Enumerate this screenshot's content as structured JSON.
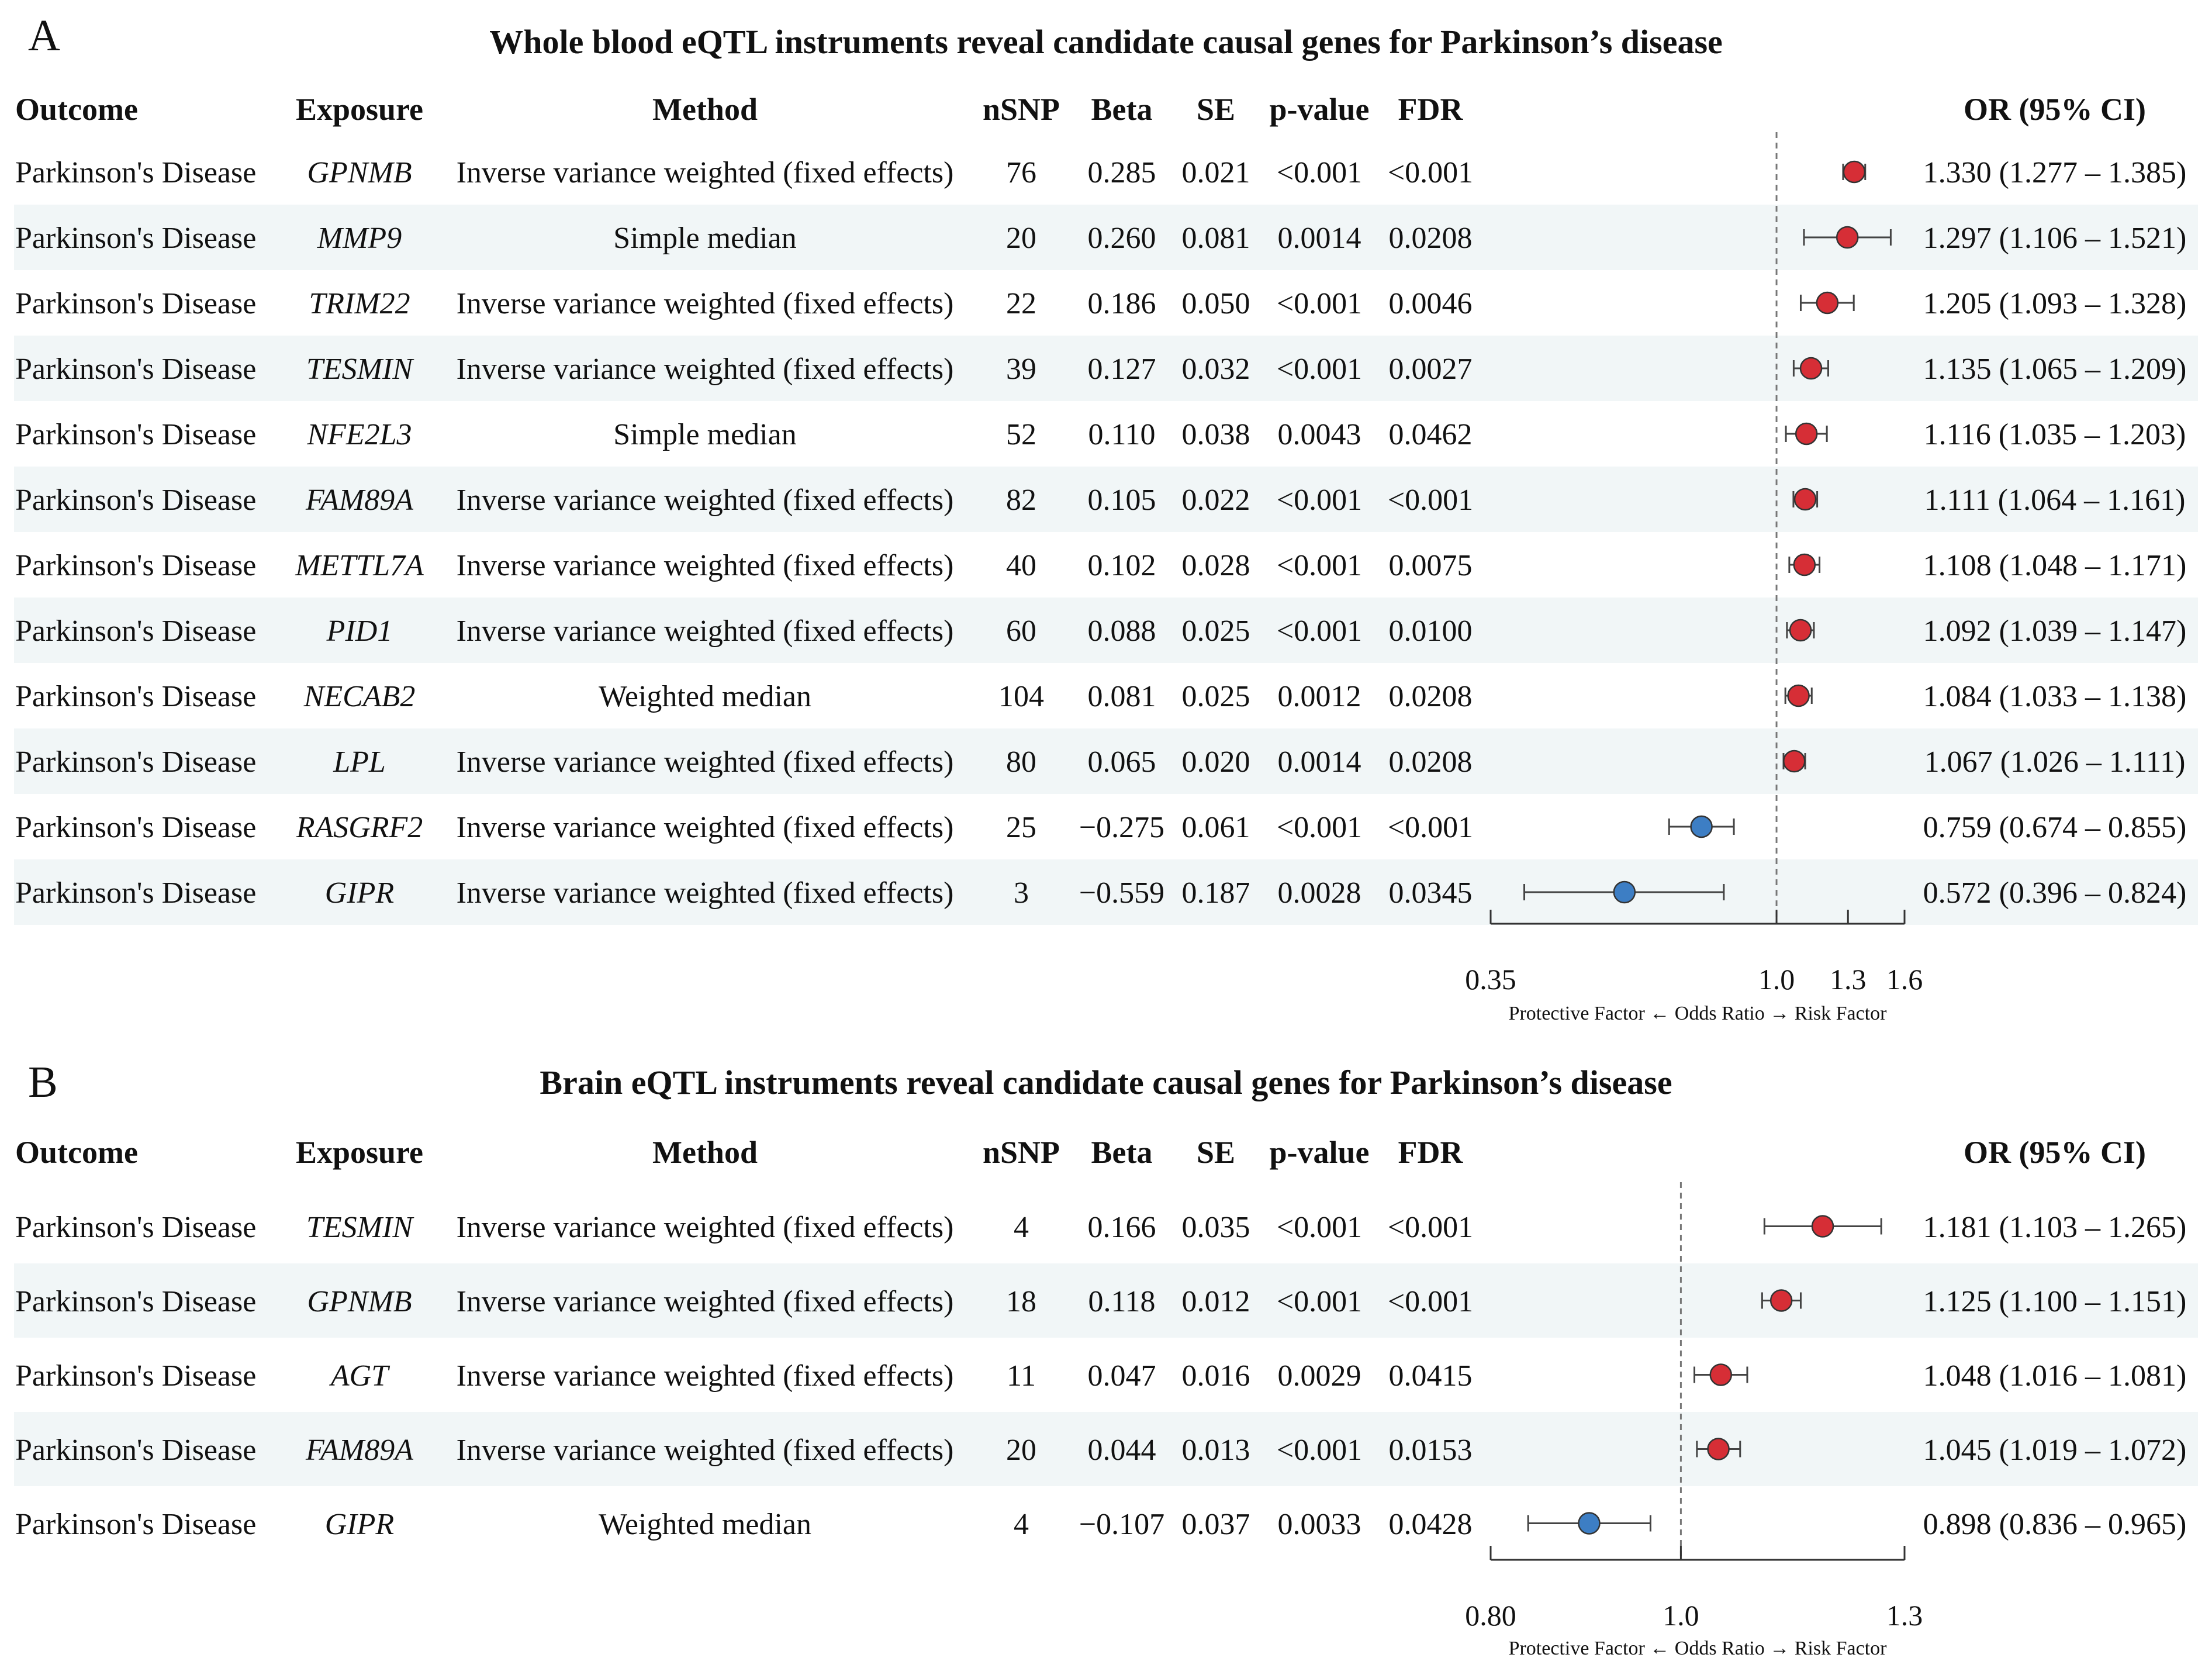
{
  "panels": [
    {
      "letter": "A",
      "title": "Whole blood eQTL instruments reveal candidate causal genes for Parkinson’s disease",
      "headers": {
        "outcome": "Outcome",
        "exposure": "Exposure",
        "method": "Method",
        "nsnp": "nSNP",
        "beta": "Beta",
        "se": "SE",
        "pvalue": "p-value",
        "fdr": "FDR",
        "or": "OR (95% CI)"
      },
      "rows": [
        {
          "outcome": "Parkinson's Disease",
          "exposure": "GPNMB",
          "method": "Inverse variance weighted (fixed effects)",
          "nsnp": "76",
          "beta": "0.285",
          "se": "0.021",
          "pvalue": "<0.001",
          "fdr": "<0.001",
          "or_text": "1.330 (1.277 – 1.385)"
        },
        {
          "outcome": "Parkinson's Disease",
          "exposure": "MMP9",
          "method": "Simple median",
          "nsnp": "20",
          "beta": "0.260",
          "se": "0.081",
          "pvalue": "0.0014",
          "fdr": "0.0208",
          "or_text": "1.297 (1.106 – 1.521)"
        },
        {
          "outcome": "Parkinson's Disease",
          "exposure": "TRIM22",
          "method": "Inverse variance weighted (fixed effects)",
          "nsnp": "22",
          "beta": "0.186",
          "se": "0.050",
          "pvalue": "<0.001",
          "fdr": "0.0046",
          "or_text": "1.205 (1.093 – 1.328)"
        },
        {
          "outcome": "Parkinson's Disease",
          "exposure": "TESMIN",
          "method": "Inverse variance weighted (fixed effects)",
          "nsnp": "39",
          "beta": "0.127",
          "se": "0.032",
          "pvalue": "<0.001",
          "fdr": "0.0027",
          "or_text": "1.135 (1.065 – 1.209)"
        },
        {
          "outcome": "Parkinson's Disease",
          "exposure": "NFE2L3",
          "method": "Simple median",
          "nsnp": "52",
          "beta": "0.110",
          "se": "0.038",
          "pvalue": "0.0043",
          "fdr": "0.0462",
          "or_text": "1.116 (1.035 – 1.203)"
        },
        {
          "outcome": "Parkinson's Disease",
          "exposure": "FAM89A",
          "method": "Inverse variance weighted (fixed effects)",
          "nsnp": "82",
          "beta": "0.105",
          "se": "0.022",
          "pvalue": "<0.001",
          "fdr": "<0.001",
          "or_text": "1.111 (1.064 – 1.161)"
        },
        {
          "outcome": "Parkinson's Disease",
          "exposure": "METTL7A",
          "method": "Inverse variance weighted (fixed effects)",
          "nsnp": "40",
          "beta": "0.102",
          "se": "0.028",
          "pvalue": "<0.001",
          "fdr": "0.0075",
          "or_text": "1.108 (1.048 – 1.171)"
        },
        {
          "outcome": "Parkinson's Disease",
          "exposure": "PID1",
          "method": "Inverse variance weighted (fixed effects)",
          "nsnp": "60",
          "beta": "0.088",
          "se": "0.025",
          "pvalue": "<0.001",
          "fdr": "0.0100",
          "or_text": "1.092 (1.039 – 1.147)"
        },
        {
          "outcome": "Parkinson's Disease",
          "exposure": "NECAB2",
          "method": "Weighted median",
          "nsnp": "104",
          "beta": "0.081",
          "se": "0.025",
          "pvalue": "0.0012",
          "fdr": "0.0208",
          "or_text": "1.084 (1.033 – 1.138)"
        },
        {
          "outcome": "Parkinson's Disease",
          "exposure": "LPL",
          "method": "Inverse variance weighted (fixed effects)",
          "nsnp": "80",
          "beta": "0.065",
          "se": "0.020",
          "pvalue": "0.0014",
          "fdr": "0.0208",
          "or_text": "1.067 (1.026 – 1.111)"
        },
        {
          "outcome": "Parkinson's Disease",
          "exposure": "RASGRF2",
          "method": "Inverse variance weighted (fixed effects)",
          "nsnp": "25",
          "beta": "−0.275",
          "se": "0.061",
          "pvalue": "<0.001",
          "fdr": "<0.001",
          "or_text": "0.759 (0.674 – 0.855)"
        },
        {
          "outcome": "Parkinson's Disease",
          "exposure": "GIPR",
          "method": "Inverse variance weighted (fixed effects)",
          "nsnp": "3",
          "beta": "−0.559",
          "se": "0.187",
          "pvalue": "0.0028",
          "fdr": "0.0345",
          "or_text": "0.572 (0.396 – 0.824)"
        }
      ],
      "axis": {
        "ticks": [
          "0.35",
          "1.0",
          "1.3",
          "1.6"
        ],
        "caption": "Protective Factor ← Odds Ratio → Risk Factor"
      }
    },
    {
      "letter": "B",
      "title": "Brain eQTL instruments reveal candidate causal genes for Parkinson’s disease",
      "headers": {
        "outcome": "Outcome",
        "exposure": "Exposure",
        "method": "Method",
        "nsnp": "nSNP",
        "beta": "Beta",
        "se": "SE",
        "pvalue": "p-value",
        "fdr": "FDR",
        "or": "OR (95% CI)"
      },
      "rows": [
        {
          "outcome": "Parkinson's Disease",
          "exposure": "TESMIN",
          "method": "Inverse variance weighted (fixed effects)",
          "nsnp": "4",
          "beta": "0.166",
          "se": "0.035",
          "pvalue": "<0.001",
          "fdr": "<0.001",
          "or_text": "1.181 (1.103 – 1.265)"
        },
        {
          "outcome": "Parkinson's Disease",
          "exposure": "GPNMB",
          "method": "Inverse variance weighted (fixed effects)",
          "nsnp": "18",
          "beta": "0.118",
          "se": "0.012",
          "pvalue": "<0.001",
          "fdr": "<0.001",
          "or_text": "1.125 (1.100 – 1.151)"
        },
        {
          "outcome": "Parkinson's Disease",
          "exposure": "AGT",
          "method": "Inverse variance weighted (fixed effects)",
          "nsnp": "11",
          "beta": "0.047",
          "se": "0.016",
          "pvalue": "0.0029",
          "fdr": "0.0415",
          "or_text": "1.048 (1.016 – 1.081)"
        },
        {
          "outcome": "Parkinson's Disease",
          "exposure": "FAM89A",
          "method": "Inverse variance weighted (fixed effects)",
          "nsnp": "20",
          "beta": "0.044",
          "se": "0.013",
          "pvalue": "<0.001",
          "fdr": "0.0153",
          "or_text": "1.045 (1.019 – 1.072)"
        },
        {
          "outcome": "Parkinson's Disease",
          "exposure": "GIPR",
          "method": "Weighted median",
          "nsnp": "4",
          "beta": "−0.107",
          "se": "0.037",
          "pvalue": "0.0033",
          "fdr": "0.0428",
          "or_text": "0.898 (0.836 – 0.965)"
        }
      ],
      "axis": {
        "ticks": [
          "0.80",
          "1.0",
          "1.3"
        ],
        "caption": "Protective Factor ← Odds Ratio → Risk Factor"
      }
    }
  ],
  "chart_data": [
    {
      "type": "forest",
      "title": "Whole blood eQTL instruments reveal candidate causal genes for Parkinson’s disease",
      "xlabel": "Protective Factor ← Odds Ratio → Risk Factor",
      "scale": "log",
      "xlim": [
        0.35,
        1.6
      ],
      "xticks": [
        0.35,
        1.0,
        1.3,
        1.6
      ],
      "reference_line": 1.0,
      "categories": [
        "GPNMB",
        "MMP9",
        "TRIM22",
        "TESMIN",
        "NFE2L3",
        "FAM89A",
        "METTL7A",
        "PID1",
        "NECAB2",
        "LPL",
        "RASGRF2",
        "GIPR"
      ],
      "or": [
        1.33,
        1.297,
        1.205,
        1.135,
        1.116,
        1.111,
        1.108,
        1.092,
        1.084,
        1.067,
        0.759,
        0.572
      ],
      "lower": [
        1.277,
        1.106,
        1.093,
        1.065,
        1.035,
        1.064,
        1.048,
        1.039,
        1.033,
        1.026,
        0.674,
        0.396
      ],
      "upper": [
        1.385,
        1.521,
        1.328,
        1.209,
        1.203,
        1.161,
        1.171,
        1.147,
        1.138,
        1.111,
        0.855,
        0.824
      ],
      "colors": {
        "risk": "#d62e36",
        "protective": "#3d7ec4"
      }
    },
    {
      "type": "forest",
      "title": "Brain eQTL instruments reveal candidate causal genes for Parkinson’s disease",
      "xlabel": "Protective Factor ← Odds Ratio → Risk Factor",
      "scale": "log",
      "xlim": [
        0.8,
        1.3
      ],
      "xticks": [
        0.8,
        1.0,
        1.3
      ],
      "reference_line": 1.0,
      "categories": [
        "TESMIN",
        "GPNMB",
        "AGT",
        "FAM89A",
        "GIPR"
      ],
      "or": [
        1.181,
        1.125,
        1.048,
        1.045,
        0.898
      ],
      "lower": [
        1.103,
        1.1,
        1.016,
        1.019,
        0.836
      ],
      "upper": [
        1.265,
        1.151,
        1.081,
        1.072,
        0.965
      ],
      "colors": {
        "risk": "#d62e36",
        "protective": "#3d7ec4"
      }
    }
  ]
}
